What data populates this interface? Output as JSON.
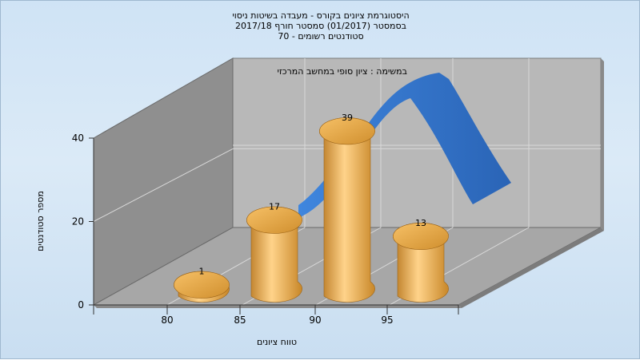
{
  "chart_data": {
    "type": "bar",
    "title_lines": [
      "היסטוגרמת ציונים בקורס - מעבדה בשיטות ניסוי",
      "בסמסטר  (01/2017)  סמסטר חורף  2017/18",
      "סטודנטים רשומים - 70"
    ],
    "annotation": "במשימה : ציון סופי במחשב המרכזי",
    "xlabel": "טווח ציונים",
    "ylabel": "מספר סטודנטים",
    "x_ticks": [
      "80",
      "85",
      "90",
      "95"
    ],
    "y_ticks": [
      "0",
      "20",
      "40"
    ],
    "ylim": [
      0,
      40
    ],
    "grid": true,
    "series": [
      {
        "type": "bar",
        "categories": [
          "80",
          "85",
          "90",
          "95"
        ],
        "values": [
          1,
          17,
          39,
          13
        ],
        "data_labels": [
          "1",
          "17",
          "39",
          "13"
        ]
      },
      {
        "type": "line",
        "style": "3d-ribbon"
      }
    ],
    "colors": {
      "bar": "#e0a43e",
      "curve": "#2f6fc4",
      "back_wall": "#b7b7b7",
      "side_wall": "#8e8e8e",
      "floor": "#a9a9a9"
    }
  }
}
